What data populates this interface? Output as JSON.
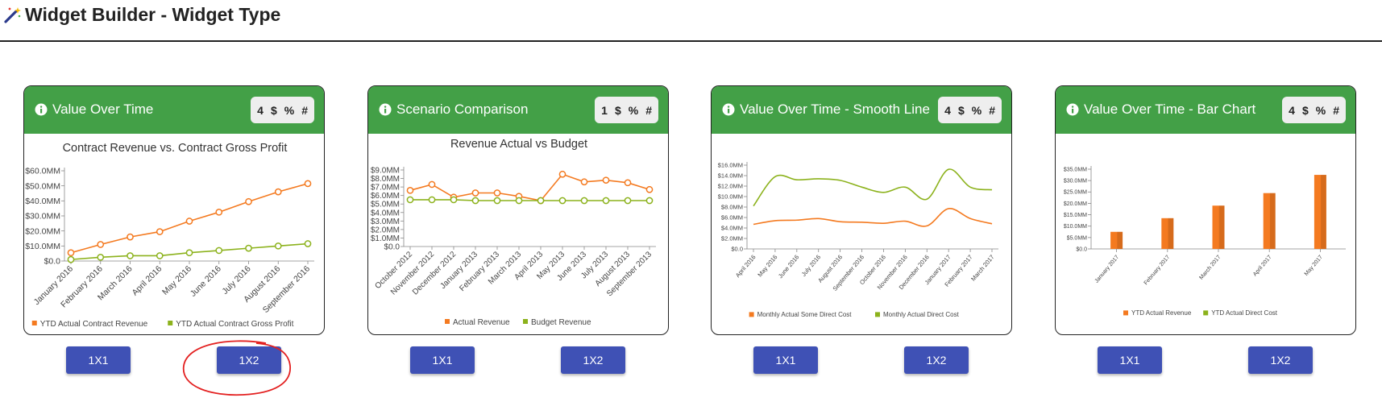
{
  "page": {
    "title": "Widget Builder - Widget Type",
    "icon": "magic-wand-icon"
  },
  "colors": {
    "header_green": "#43a047",
    "button_blue": "#3f51b5",
    "series_orange": "#f47a20",
    "series_green": "#8cb21c",
    "annotation_red": "#e32020"
  },
  "cards": [
    {
      "title": "Value Over Time",
      "options": [
        "4",
        "$",
        "%",
        "#"
      ],
      "buttons": [
        "1X1",
        "1X2"
      ],
      "chart_data": {
        "type": "line",
        "title": "Contract Revenue vs. Contract Gross Profit",
        "categories": [
          "January 2016",
          "February 2016",
          "March 2016",
          "April 2016",
          "May 2016",
          "June 2016",
          "July 2016",
          "August 2016",
          "September 2016"
        ],
        "y_ticks": [
          "$0.0",
          "$10.0MM",
          "$20.0MM",
          "$30.0MM",
          "$40.0MM",
          "$50.0MM",
          "$60.0MM"
        ],
        "ylim": [
          0,
          60
        ],
        "markers": true,
        "series": [
          {
            "name": "YTD Actual Contract Revenue",
            "color": "#f47a20",
            "values": [
              5.5,
              11,
              16,
              19.5,
              26.5,
              32.5,
              39.5,
              46,
              51.5
            ]
          },
          {
            "name": "YTD Actual Contract Gross Profit",
            "color": "#8cb21c",
            "values": [
              1,
              2.5,
              3.5,
              3.5,
              5.5,
              7,
              8.5,
              10,
              11.5
            ]
          }
        ]
      }
    },
    {
      "title": "Scenario Comparison",
      "options": [
        "1",
        "$",
        "%",
        "#"
      ],
      "buttons": [
        "1X1",
        "1X2"
      ],
      "chart_data": {
        "type": "line",
        "title": "Revenue Actual vs Budget",
        "categories": [
          "October 2012",
          "November 2012",
          "December 2012",
          "January 2013",
          "February 2013",
          "March 2013",
          "April 2013",
          "May 2013",
          "June 2013",
          "July 2013",
          "August 2013",
          "September 2013"
        ],
        "y_ticks": [
          "$0.0",
          "$1.0MM",
          "$2.0MM",
          "$3.0MM",
          "$4.0MM",
          "$5.0MM",
          "$6.0MM",
          "$7.0MM",
          "$8.0MM",
          "$9.0MM"
        ],
        "ylim": [
          0,
          9
        ],
        "markers": true,
        "series": [
          {
            "name": "Actual Revenue",
            "color": "#f47a20",
            "values": [
              6.6,
              7.3,
              5.8,
              6.3,
              6.3,
              5.9,
              5.4,
              8.5,
              7.6,
              7.8,
              7.5,
              6.7
            ]
          },
          {
            "name": "Budget Revenue",
            "color": "#8cb21c",
            "values": [
              5.5,
              5.5,
              5.5,
              5.4,
              5.4,
              5.4,
              5.4,
              5.4,
              5.4,
              5.4,
              5.4,
              5.4
            ]
          }
        ]
      }
    },
    {
      "title": "Value Over Time - Smooth Line",
      "options": [
        "4",
        "$",
        "%",
        "#"
      ],
      "buttons": [
        "1X1",
        "1X2"
      ],
      "chart_data": {
        "type": "line",
        "title": "",
        "smooth": true,
        "categories": [
          "April 2016",
          "May 2016",
          "June 2016",
          "July 2016",
          "August 2016",
          "September 2016",
          "October 2016",
          "November 2016",
          "December 2016",
          "January 2017",
          "February 2017",
          "March 2017"
        ],
        "y_ticks": [
          "$0.0",
          "$2.0MM",
          "$4.0MM",
          "$6.0MM",
          "$8.0MM",
          "$10.0MM",
          "$12.0MM",
          "$14.0MM",
          "$16.0MM"
        ],
        "ylim": [
          0,
          16
        ],
        "markers": false,
        "series": [
          {
            "name": "Monthly Actual Some Direct Cost",
            "color": "#f47a20",
            "values": [
              4.7,
              5.4,
              5.5,
              5.8,
              5.2,
              5.1,
              4.9,
              5.3,
              4.4,
              7.7,
              5.8,
              4.8
            ]
          },
          {
            "name": "Monthly Actual Direct Cost",
            "color": "#8cb21c",
            "values": [
              8.2,
              13.8,
              13.2,
              13.4,
              13.1,
              11.8,
              10.8,
              11.8,
              9.5,
              15.2,
              11.8,
              11.3
            ]
          }
        ]
      }
    },
    {
      "title": "Value Over Time - Bar Chart",
      "options": [
        "4",
        "$",
        "%",
        "#"
      ],
      "buttons": [
        "1X1",
        "1X2"
      ],
      "chart_data": {
        "type": "bar",
        "title": "",
        "categories": [
          "January 2017",
          "February 2017",
          "March 2017",
          "April 2017",
          "May 2017"
        ],
        "y_ticks": [
          "$0.0",
          "$5.0MM",
          "$10.0MM",
          "$15.0MM",
          "$20.0MM",
          "$25.0MM",
          "$30.0MM",
          "$35.0MM"
        ],
        "ylim": [
          0,
          35
        ],
        "series": [
          {
            "name": "YTD Actual Revenue",
            "color": "#f47a20",
            "values": [
              7.5,
              13.5,
              19,
              24.5,
              32.5
            ]
          },
          {
            "name": "YTD Actual Direct Cost",
            "color": "#8cb21c",
            "values": [
              0,
              0,
              0,
              0,
              0
            ]
          }
        ]
      }
    }
  ]
}
